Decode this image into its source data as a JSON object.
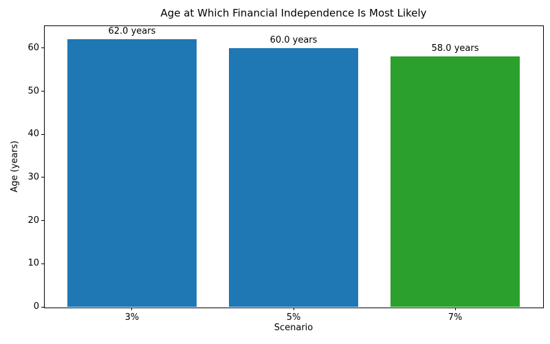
{
  "chart_data": {
    "type": "bar",
    "title": "Age at Which Financial Independence Is Most Likely",
    "xlabel": "Scenario",
    "ylabel": "Age (years)",
    "categories": [
      "3%",
      "5%",
      "7%"
    ],
    "values": [
      62.0,
      60.0,
      58.0
    ],
    "bar_labels": [
      "62.0 years",
      "60.0 years",
      "58.0 years"
    ],
    "bar_colors": [
      "#1f77b4",
      "#1f77b4",
      "#2ca02c"
    ],
    "ylim": [
      0,
      65.1
    ],
    "yticks": [
      0,
      10,
      20,
      30,
      40,
      50,
      60
    ],
    "grid": false,
    "legend_position": "none",
    "background_color": "#ffffff",
    "axis_color": "#000000"
  }
}
